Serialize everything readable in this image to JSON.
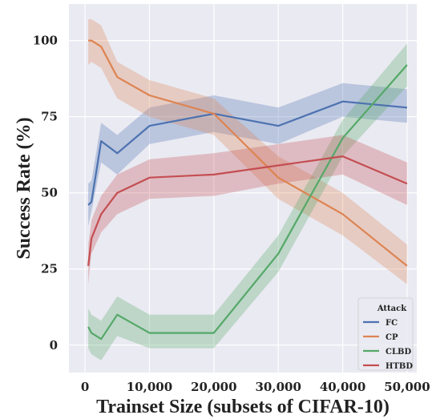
{
  "chart_data": {
    "type": "line",
    "xlabel": "Trainset Size (subsets of CIFAR-10)",
    "ylabel": "Success Rate (%)",
    "xlim": [
      -2500,
      51500
    ],
    "ylim": [
      -9,
      112
    ],
    "xticks": [
      0,
      10000,
      20000,
      30000,
      40000,
      50000
    ],
    "xtick_labels": [
      "0",
      "10,000",
      "20,000",
      "30,000",
      "40,000",
      "50,000"
    ],
    "yticks": [
      0,
      25,
      50,
      75,
      100
    ],
    "ytick_labels": [
      "0",
      "25",
      "50",
      "75",
      "100"
    ],
    "grid": true,
    "legend": {
      "title": "Attack",
      "placement": "bottom-right"
    },
    "series": [
      {
        "name": "FC",
        "color": "#4c72b0",
        "x": [
          500,
          1000,
          2500,
          5000,
          10000,
          20000,
          30000,
          40000,
          50000
        ],
        "y": [
          46,
          47,
          67,
          63,
          72,
          76,
          72,
          80,
          78
        ],
        "lower": [
          39,
          44,
          60,
          56,
          66,
          70,
          66,
          75,
          73
        ],
        "upper": [
          53,
          54,
          73,
          69,
          78,
          82,
          78,
          86,
          84
        ]
      },
      {
        "name": "CP",
        "color": "#dd8452",
        "x": [
          500,
          1000,
          2500,
          5000,
          10000,
          20000,
          30000,
          40000,
          50000
        ],
        "y": [
          100,
          100,
          98,
          88,
          82,
          76,
          55,
          43,
          26
        ],
        "lower": [
          92,
          93,
          91,
          81,
          75,
          69,
          48,
          36,
          20
        ],
        "upper": [
          107,
          107,
          105,
          93,
          87,
          81,
          62,
          50,
          33
        ]
      },
      {
        "name": "CLBD",
        "color": "#55a868",
        "x": [
          500,
          1000,
          2500,
          5000,
          10000,
          20000,
          30000,
          40000,
          50000
        ],
        "y": [
          6,
          4,
          2,
          10,
          4,
          4,
          30,
          68,
          92
        ],
        "lower": [
          -1,
          -3,
          -5,
          3,
          -1,
          -1,
          24,
          62,
          85
        ],
        "upper": [
          12,
          10,
          8,
          16,
          10,
          10,
          36,
          74,
          99
        ]
      },
      {
        "name": "HTBD",
        "color": "#c44e52",
        "x": [
          500,
          1000,
          2500,
          5000,
          10000,
          20000,
          30000,
          40000,
          50000
        ],
        "y": [
          26,
          35,
          43,
          50,
          55,
          56,
          59,
          62,
          53
        ],
        "lower": [
          20,
          30,
          37,
          43,
          48,
          49,
          53,
          56,
          46
        ],
        "upper": [
          33,
          41,
          49,
          56,
          61,
          63,
          66,
          69,
          60
        ]
      }
    ]
  }
}
